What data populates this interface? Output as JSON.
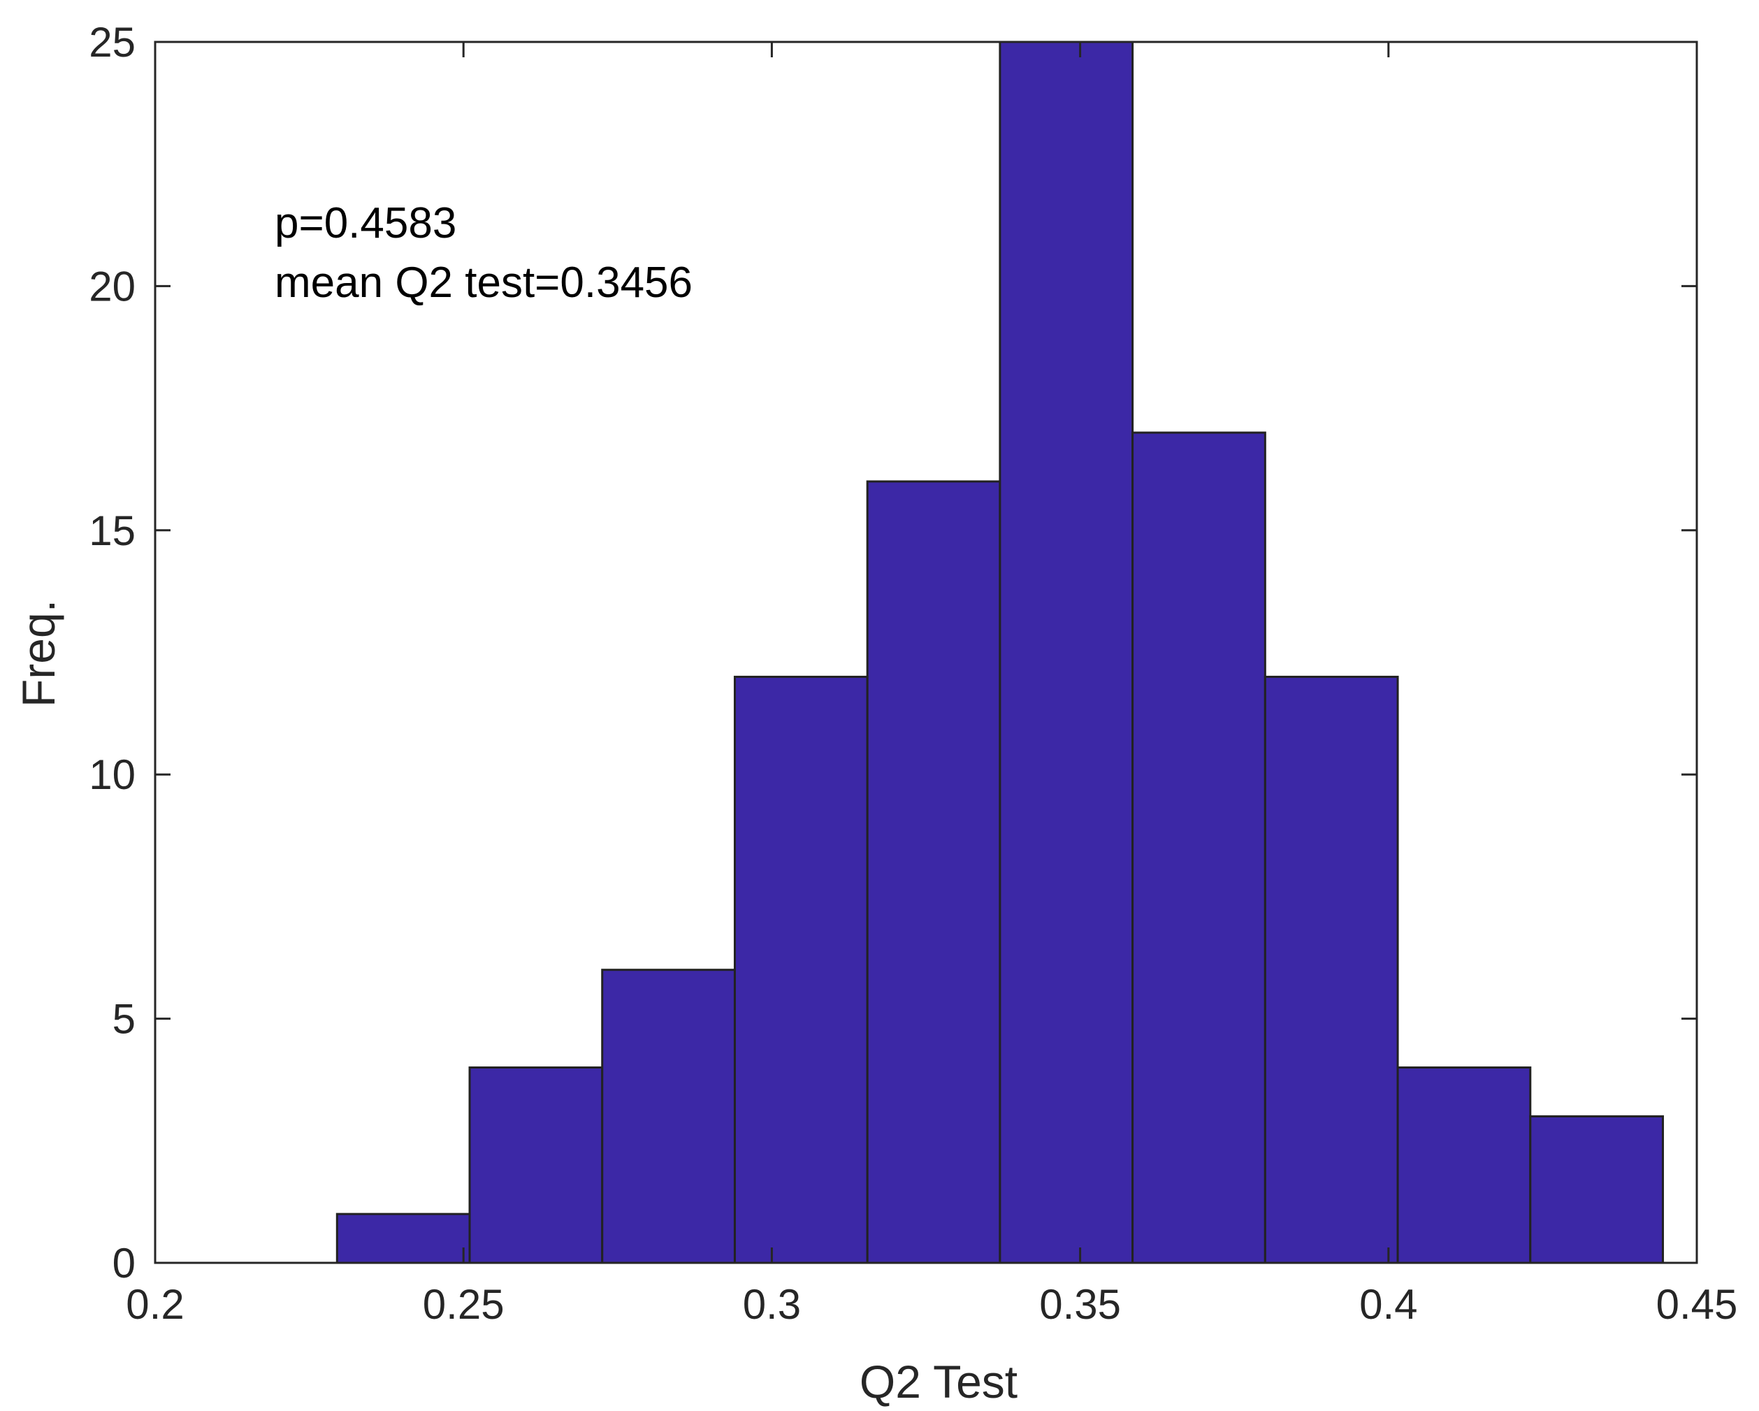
{
  "chart_data": {
    "type": "bar",
    "title": "",
    "xlabel": "Q2 Test",
    "ylabel": "Freq.",
    "xlim": [
      0.2,
      0.45
    ],
    "ylim": [
      0,
      25
    ],
    "xticks": [
      "0.2",
      "0.25",
      "0.3",
      "0.35",
      "0.4",
      "0.45"
    ],
    "yticks": [
      "0",
      "5",
      "10",
      "15",
      "20",
      "25"
    ],
    "bin_edges": [
      0.2295,
      0.251,
      0.2725,
      0.294,
      0.3155,
      0.337,
      0.3585,
      0.38,
      0.4015,
      0.423,
      0.4445
    ],
    "values": [
      1,
      4,
      6,
      12,
      16,
      25,
      17,
      12,
      4,
      3
    ],
    "bar_color": "#3c28a6",
    "edge_color": "#222222",
    "grid": false,
    "annotations": [
      "p=0.4583",
      "mean Q2 test=0.3456"
    ]
  }
}
